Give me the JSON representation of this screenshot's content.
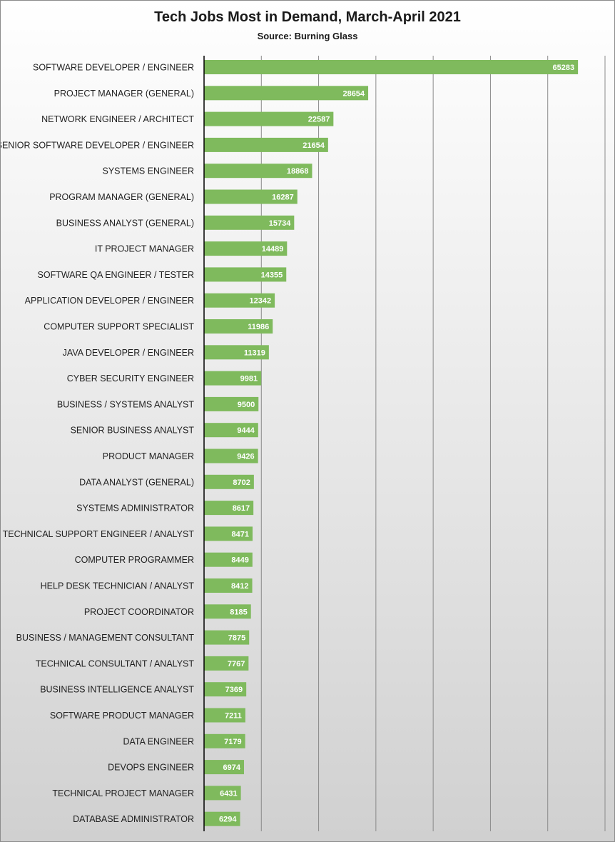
{
  "chart_data": {
    "type": "bar",
    "orientation": "horizontal",
    "title": "Tech Jobs Most in Demand, March-April 2021",
    "subtitle": "Source: Burning Glass",
    "xlabel": "",
    "ylabel": "",
    "xlim": [
      0,
      70000
    ],
    "grid": true,
    "legend": "none",
    "bar_color": "#7fba5d",
    "categories": [
      "SOFTWARE DEVELOPER / ENGINEER",
      "PROJECT MANAGER (GENERAL)",
      "NETWORK ENGINEER / ARCHITECT",
      "SENIOR SOFTWARE DEVELOPER / ENGINEER",
      "SYSTEMS ENGINEER",
      "PROGRAM MANAGER (GENERAL)",
      "BUSINESS ANALYST (GENERAL)",
      "IT PROJECT MANAGER",
      "SOFTWARE QA ENGINEER / TESTER",
      "APPLICATION DEVELOPER / ENGINEER",
      "COMPUTER SUPPORT SPECIALIST",
      "JAVA DEVELOPER / ENGINEER",
      "CYBER SECURITY ENGINEER",
      "BUSINESS / SYSTEMS ANALYST",
      "SENIOR BUSINESS ANALYST",
      "PRODUCT MANAGER",
      "DATA ANALYST (GENERAL)",
      "SYSTEMS ADMINISTRATOR",
      "TECHNICAL SUPPORT ENGINEER / ANALYST",
      "COMPUTER PROGRAMMER",
      "HELP DESK TECHNICIAN / ANALYST",
      "PROJECT COORDINATOR",
      "BUSINESS / MANAGEMENT CONSULTANT",
      "TECHNICAL CONSULTANT / ANALYST",
      "BUSINESS INTELLIGENCE ANALYST",
      "SOFTWARE PRODUCT MANAGER",
      "DATA ENGINEER",
      "DEVOPS ENGINEER",
      "TECHNICAL PROJECT MANAGER",
      "DATABASE ADMINISTRATOR"
    ],
    "values": [
      65283,
      28654,
      22587,
      21654,
      18868,
      16287,
      15734,
      14489,
      14355,
      12342,
      11986,
      11319,
      9981,
      9500,
      9444,
      9426,
      8702,
      8617,
      8471,
      8449,
      8412,
      8185,
      7875,
      7767,
      7369,
      7211,
      7179,
      6974,
      6431,
      6294
    ]
  }
}
